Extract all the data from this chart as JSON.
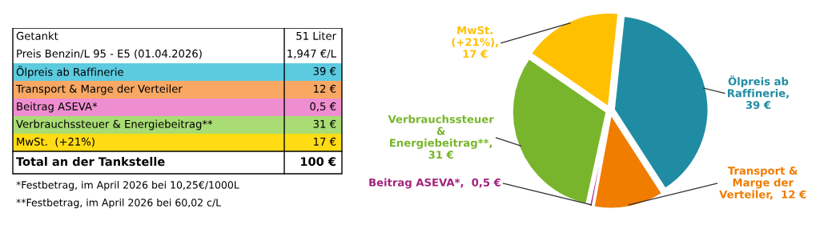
{
  "chart_data": [
    {
      "type": "other",
      "categories": [
        "Getankt",
        "Preis Benzin/L 95 - E5 (01.04.2026)",
        "Ölpreis ab Raffinerie",
        "Transport & Marge der Verteiler",
        "Beitrag ASEVA*",
        "Verbrauchssteuer & Energiebeitrag**",
        "MwSt.  (+21%)",
        "Total an der Tankstelle"
      ],
      "value_labels": [
        "51 Liter",
        "1,947 €/L",
        "39 €",
        "12 €",
        "0,5 €",
        "31 €",
        "17 €",
        "100 €"
      ],
      "colors": [
        null,
        null,
        "#5ccbe0",
        "#f9a864",
        "#ee8ed0",
        "#a9dc74",
        "#ffdc14",
        null
      ],
      "annotations": [
        "*Festbetrag, im April 2026 bei 10,25€/1000L",
        "**Festbetrag, im April 2026 bei 60,02 c/L"
      ]
    },
    {
      "type": "pie",
      "categories": [
        "Ölpreis ab\nRaffinerie,\n39 €",
        "Transport &\nMarge der\nVerteiler,  12 €",
        "Beitrag ASEVA*,  0,5 €",
        "Verbrauchssteuer\n&\nEnergiebeitrag**,\n31 €",
        "MwSt.\n(+21%),\n17 €"
      ],
      "values": [
        39,
        12,
        0.5,
        31,
        17
      ],
      "colors": [
        "#208ca3",
        "#f07c00",
        "#a3237f",
        "#78b52c",
        "#ffc000"
      ]
    }
  ]
}
